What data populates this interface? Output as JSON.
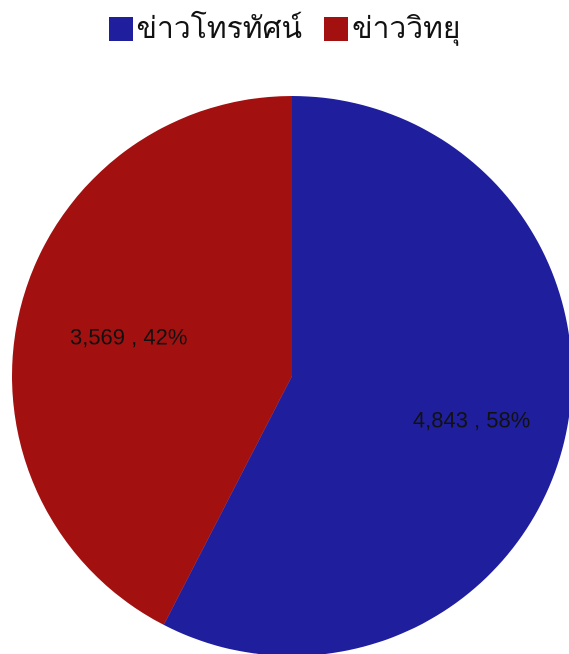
{
  "chart_data": {
    "type": "pie",
    "title": "",
    "categories": [
      "ข่าวโทรทัศน์",
      "ข่าววิทยุ"
    ],
    "values": [
      4843,
      3569
    ],
    "percents": [
      58,
      42
    ],
    "labels": [
      "4,843 , 58%",
      "3,569 , 42%"
    ],
    "colors": [
      "#1f1f9e",
      "#a31010"
    ],
    "legend_position": "top"
  }
}
